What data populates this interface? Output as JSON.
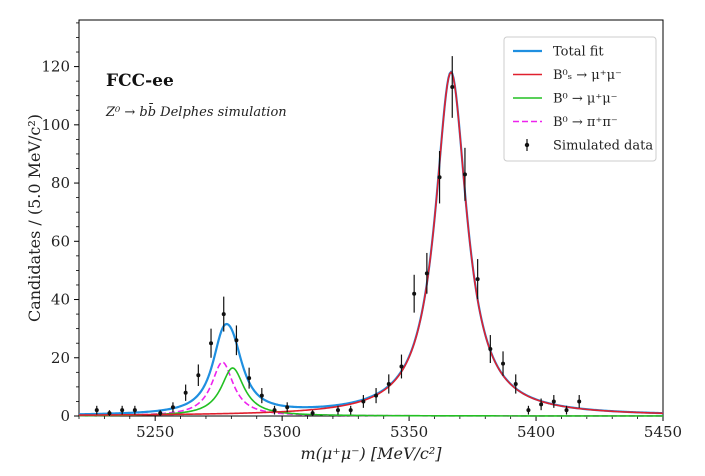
{
  "chart_data": {
    "type": "line",
    "title": "",
    "annotation_title": "FCC-ee",
    "annotation_subtitle": "Z⁰ → bb̄ Delphes simulation",
    "xlabel": "m(μ⁺μ⁻) [MeV/c²]",
    "ylabel": "Candidates / (5.0 MeV/c²)",
    "xlim": [
      5220,
      5450
    ],
    "ylim": [
      0,
      136
    ],
    "xticks": [
      5250,
      5300,
      5350,
      5400,
      5450
    ],
    "yticks": [
      0,
      20,
      40,
      60,
      80,
      100,
      120
    ],
    "legend_position": "top-right",
    "series": [
      {
        "name": "Total fit",
        "kind": "curve",
        "color": "#1f8fe0",
        "dash": "solid",
        "components": [
          {
            "shape": "lorentz",
            "amp": 18.5,
            "mu": 5276.5,
            "gamma": 5.2
          },
          {
            "shape": "lorentz",
            "amp": 16.5,
            "mu": 5280.5,
            "gamma": 5.5
          },
          {
            "shape": "lorentz",
            "amp": 118,
            "mu": 5366.5,
            "gamma": 7.5
          }
        ]
      },
      {
        "name": "B⁰ₛ → μ⁺μ⁻",
        "kind": "curve",
        "color": "#e0202e",
        "dash": "solid",
        "components": [
          {
            "shape": "lorentz",
            "amp": 118,
            "mu": 5366.5,
            "gamma": 7.5
          }
        ]
      },
      {
        "name": "B⁰ → μ⁺μ⁻",
        "kind": "curve",
        "color": "#22c022",
        "dash": "solid",
        "components": [
          {
            "shape": "lorentz",
            "amp": 16.5,
            "mu": 5280.5,
            "gamma": 5.5
          }
        ]
      },
      {
        "name": "B⁰ → π⁺π⁻",
        "kind": "curve",
        "color": "#ee22ee",
        "dash": "dashed",
        "components": [
          {
            "shape": "lorentz",
            "amp": 18.5,
            "mu": 5276.5,
            "gamma": 5.2
          }
        ]
      },
      {
        "name": "Simulated data",
        "kind": "points",
        "color": "#111111",
        "points": [
          {
            "x": 5227,
            "y": 2,
            "err": 1.5
          },
          {
            "x": 5232,
            "y": 1,
            "err": 1.0
          },
          {
            "x": 5237,
            "y": 2,
            "err": 1.5
          },
          {
            "x": 5242,
            "y": 2,
            "err": 1.5
          },
          {
            "x": 5252,
            "y": 1,
            "err": 1.0
          },
          {
            "x": 5257,
            "y": 3,
            "err": 1.7
          },
          {
            "x": 5262,
            "y": 8,
            "err": 2.8
          },
          {
            "x": 5267,
            "y": 14,
            "err": 3.7
          },
          {
            "x": 5272,
            "y": 25,
            "err": 5.0
          },
          {
            "x": 5277,
            "y": 35,
            "err": 6.0
          },
          {
            "x": 5282,
            "y": 26,
            "err": 5.1
          },
          {
            "x": 5287,
            "y": 13,
            "err": 3.6
          },
          {
            "x": 5292,
            "y": 7,
            "err": 2.6
          },
          {
            "x": 5297,
            "y": 2,
            "err": 1.5
          },
          {
            "x": 5302,
            "y": 3,
            "err": 1.7
          },
          {
            "x": 5312,
            "y": 1,
            "err": 1.0
          },
          {
            "x": 5322,
            "y": 2,
            "err": 1.5
          },
          {
            "x": 5327,
            "y": 2,
            "err": 1.5
          },
          {
            "x": 5332,
            "y": 5,
            "err": 2.2
          },
          {
            "x": 5337,
            "y": 7,
            "err": 2.6
          },
          {
            "x": 5342,
            "y": 11,
            "err": 3.3
          },
          {
            "x": 5347,
            "y": 17,
            "err": 4.1
          },
          {
            "x": 5352,
            "y": 42,
            "err": 6.5
          },
          {
            "x": 5357,
            "y": 49,
            "err": 7.0
          },
          {
            "x": 5362,
            "y": 82,
            "err": 9.0
          },
          {
            "x": 5367,
            "y": 113,
            "err": 10.6
          },
          {
            "x": 5372,
            "y": 83,
            "err": 9.1
          },
          {
            "x": 5377,
            "y": 47,
            "err": 6.9
          },
          {
            "x": 5382,
            "y": 23,
            "err": 4.8
          },
          {
            "x": 5387,
            "y": 18,
            "err": 4.2
          },
          {
            "x": 5392,
            "y": 11,
            "err": 3.3
          },
          {
            "x": 5397,
            "y": 2,
            "err": 1.5
          },
          {
            "x": 5402,
            "y": 4,
            "err": 2.0
          },
          {
            "x": 5407,
            "y": 5,
            "err": 2.2
          },
          {
            "x": 5412,
            "y": 2,
            "err": 1.5
          },
          {
            "x": 5417,
            "y": 5,
            "err": 2.2
          }
        ]
      }
    ]
  }
}
